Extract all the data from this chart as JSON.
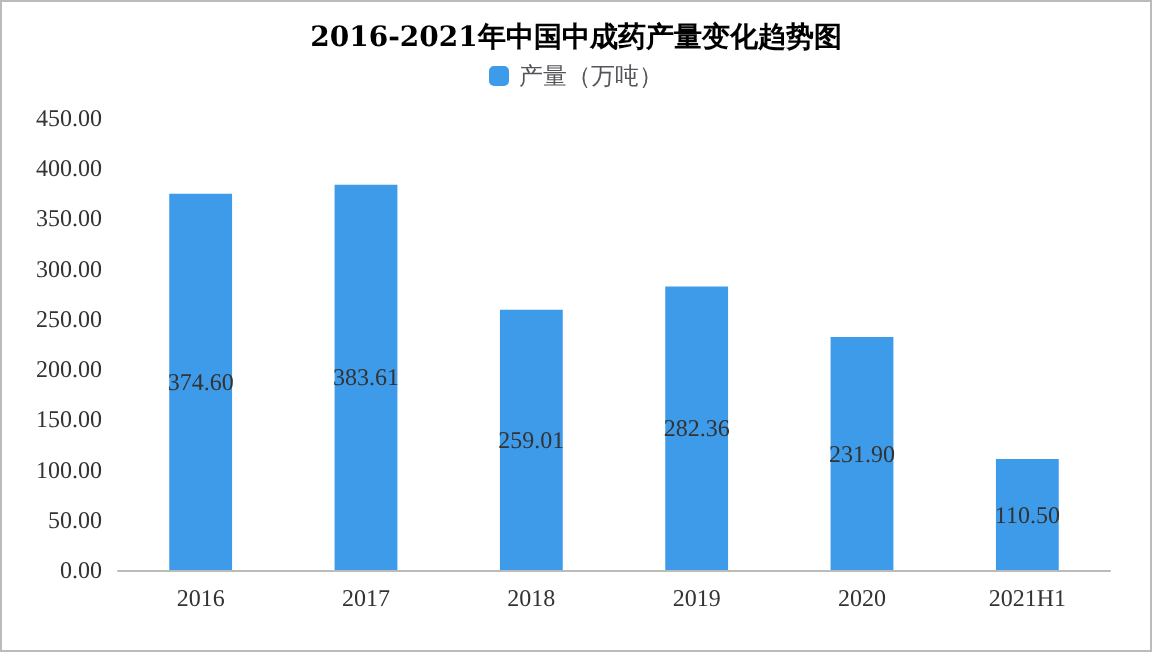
{
  "chart_data": {
    "type": "bar",
    "title": "2016-2021年中国中成药产量变化趋势图",
    "categories": [
      "2016",
      "2017",
      "2018",
      "2019",
      "2020",
      "2021H1"
    ],
    "series": [
      {
        "name": "产量（万吨）",
        "color": "#3d9be9",
        "values": [
          374.6,
          383.61,
          259.01,
          282.36,
          231.9,
          110.5
        ],
        "value_labels": [
          "374.60",
          "383.61",
          "259.01",
          "282.36",
          "231.90",
          "110.50"
        ]
      }
    ],
    "ylim": [
      0,
      450
    ],
    "yticks": [
      {
        "value": 0,
        "label": "0.00"
      },
      {
        "value": 50,
        "label": "50.00"
      },
      {
        "value": 100,
        "label": "100.00"
      },
      {
        "value": 150,
        "label": "150.00"
      },
      {
        "value": 200,
        "label": "200.00"
      },
      {
        "value": 250,
        "label": "250.00"
      },
      {
        "value": 300,
        "label": "300.00"
      },
      {
        "value": 350,
        "label": "350.00"
      },
      {
        "value": 400,
        "label": "400.00"
      },
      {
        "value": 450,
        "label": "450.00"
      }
    ],
    "legend": "top",
    "grid": false
  }
}
